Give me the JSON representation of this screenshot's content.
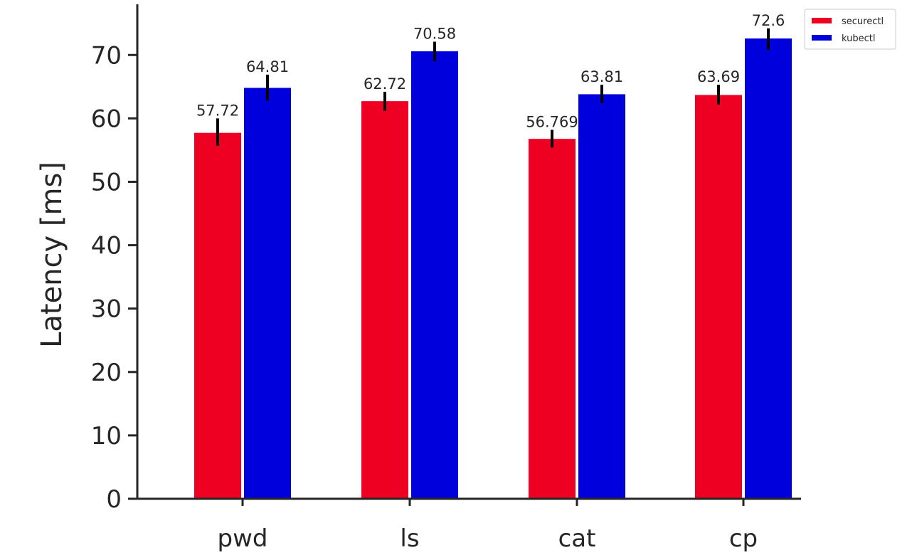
{
  "chart_data": {
    "type": "bar",
    "categories": [
      "pwd",
      "ls",
      "cat",
      "cp"
    ],
    "series": [
      {
        "name": "securectl",
        "color": "#ee0022",
        "values": [
          57.72,
          62.72,
          56.769,
          63.69
        ],
        "labels": [
          "57.72",
          "62.72",
          "56.769",
          "63.69"
        ],
        "error_low": [
          55.7,
          61.2,
          55.4,
          62.2
        ],
        "error_high": [
          60.0,
          64.2,
          58.2,
          65.3
        ]
      },
      {
        "name": "kubectl",
        "color": "#0000dd",
        "values": [
          64.81,
          70.58,
          63.81,
          72.6
        ],
        "labels": [
          "64.81",
          "70.58",
          "63.81",
          "72.6"
        ],
        "error_low": [
          62.8,
          69.0,
          62.4,
          70.8
        ],
        "error_high": [
          66.9,
          72.1,
          65.3,
          74.2
        ]
      }
    ],
    "ylabel": "Latency [ms]",
    "xlabel": "",
    "ylim": [
      0,
      78
    ],
    "yticks": [
      0,
      10,
      20,
      30,
      40,
      50,
      60,
      70
    ],
    "ytick_labels": [
      "0",
      "10",
      "20",
      "30",
      "40",
      "50",
      "60",
      "70"
    ],
    "grid": false,
    "legend_position": "top-right"
  }
}
